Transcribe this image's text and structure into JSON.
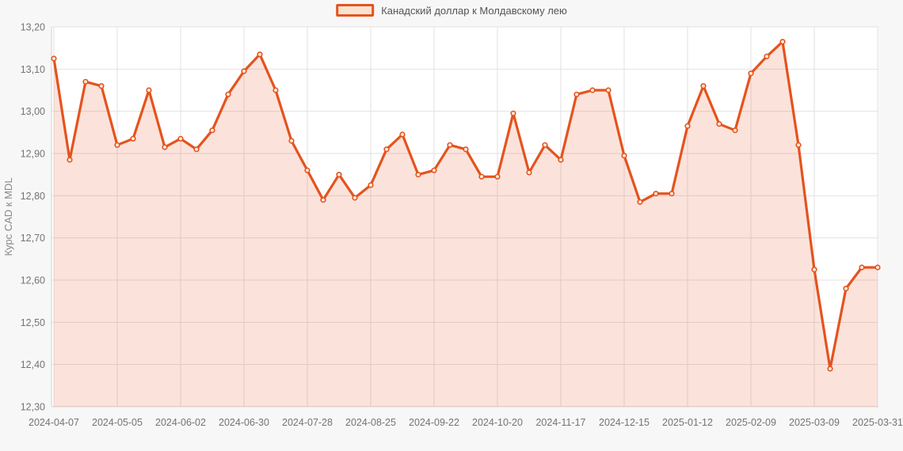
{
  "chart_data": {
    "type": "area",
    "title": "",
    "legend": "Канадский доллар к Молдавскому лею",
    "legend_position": "top-center",
    "xlabel": "",
    "ylabel": "Курс CAD к MDL",
    "ylim": [
      12.3,
      13.2
    ],
    "ytick_step": 0.1,
    "grid": true,
    "x_label_every": 4,
    "x": [
      "2024-04-07",
      "2024-04-14",
      "2024-04-21",
      "2024-04-28",
      "2024-05-05",
      "2024-05-12",
      "2024-05-19",
      "2024-05-26",
      "2024-06-02",
      "2024-06-09",
      "2024-06-16",
      "2024-06-23",
      "2024-06-30",
      "2024-07-07",
      "2024-07-14",
      "2024-07-21",
      "2024-07-28",
      "2024-08-04",
      "2024-08-11",
      "2024-08-18",
      "2024-08-25",
      "2024-09-01",
      "2024-09-08",
      "2024-09-15",
      "2024-09-22",
      "2024-09-29",
      "2024-10-06",
      "2024-10-13",
      "2024-10-20",
      "2024-10-27",
      "2024-11-03",
      "2024-11-10",
      "2024-11-17",
      "2024-11-24",
      "2024-12-01",
      "2024-12-08",
      "2024-12-15",
      "2024-12-22",
      "2024-12-29",
      "2025-01-05",
      "2025-01-12",
      "2025-01-19",
      "2025-01-26",
      "2025-02-02",
      "2025-02-09",
      "2025-02-16",
      "2025-02-23",
      "2025-03-02",
      "2025-03-09",
      "2025-03-16",
      "2025-03-23",
      "2025-03-30",
      "2025-03-31"
    ],
    "values": [
      13.125,
      12.885,
      13.07,
      13.06,
      12.92,
      12.935,
      13.05,
      12.915,
      12.935,
      12.91,
      12.955,
      13.04,
      13.095,
      13.135,
      13.05,
      12.93,
      12.86,
      12.79,
      12.85,
      12.795,
      12.825,
      12.91,
      12.945,
      12.85,
      12.86,
      12.92,
      12.91,
      12.845,
      12.845,
      12.995,
      12.855,
      12.92,
      12.885,
      13.04,
      13.05,
      13.05,
      12.895,
      12.785,
      12.805,
      12.805,
      12.965,
      13.06,
      12.97,
      12.955,
      13.09,
      13.13,
      13.165,
      12.92,
      12.625,
      12.39,
      12.58,
      12.63,
      12.63
    ],
    "colors": {
      "line": "#e5531d",
      "area": "rgba(229,83,29,0.16)",
      "marker_fill": "#fbe9dd",
      "swatch_fill": "#f8e3d3",
      "grid": "#e2e2e2",
      "axis": "#d0d0d0",
      "tick_text": "#747474",
      "axis_title_text": "#888888",
      "legend_text": "#545454",
      "plot_bg": "#ffffff",
      "page_bg": "#f7f7f7"
    }
  }
}
